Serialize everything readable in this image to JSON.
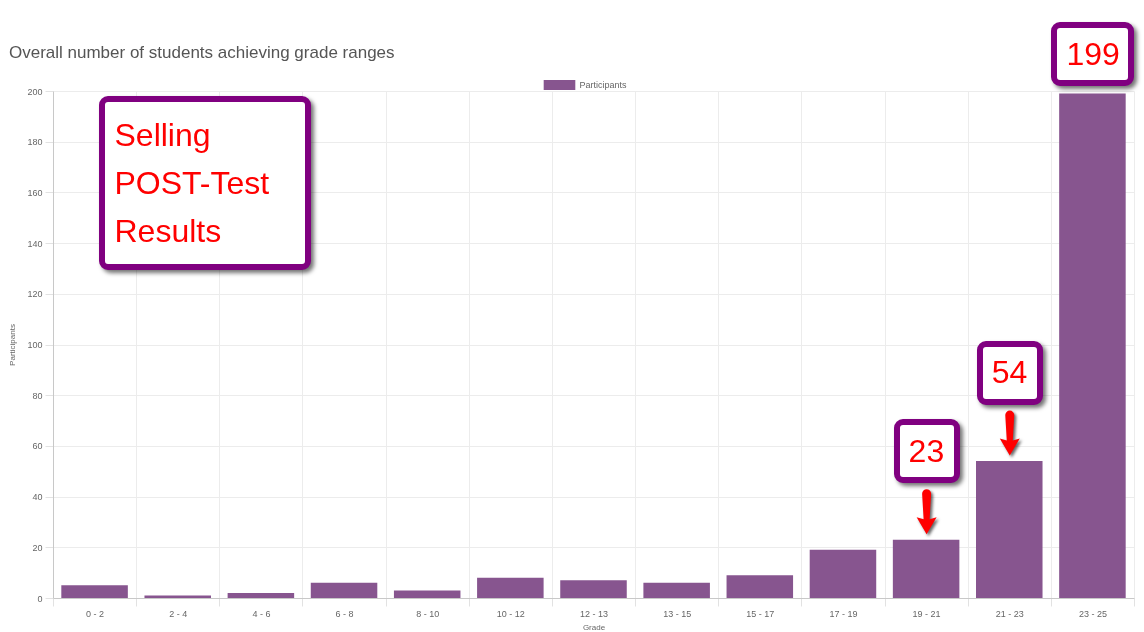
{
  "chart_data": {
    "type": "bar",
    "title": "Overall number of students achieving grade ranges",
    "xlabel": "Grade",
    "ylabel": "Participants",
    "categories": [
      "0 - 2",
      "2 - 4",
      "4 - 6",
      "6 - 8",
      "8 - 10",
      "10 - 12",
      "12 - 13",
      "13 - 15",
      "15 - 17",
      "17 - 19",
      "19 - 21",
      "21 - 23",
      "23 - 25"
    ],
    "series": [
      {
        "name": "Participants",
        "color": "#87558f",
        "values": [
          5,
          1,
          2,
          6,
          3,
          8,
          7,
          6,
          9,
          19,
          23,
          54,
          199
        ]
      }
    ],
    "ylim": [
      0,
      200
    ],
    "yticks": [
      0,
      20,
      40,
      60,
      80,
      100,
      120,
      140,
      160,
      180,
      200
    ],
    "grid": true,
    "legend": "top",
    "annotations": [
      "Selling POST-Test Results",
      {
        "text": "23",
        "x": "19 - 21",
        "y": 23
      },
      {
        "text": "54",
        "x": "21 - 23",
        "y": 54
      },
      {
        "text": "199",
        "x": "23 - 25",
        "y": 199
      }
    ]
  }
}
